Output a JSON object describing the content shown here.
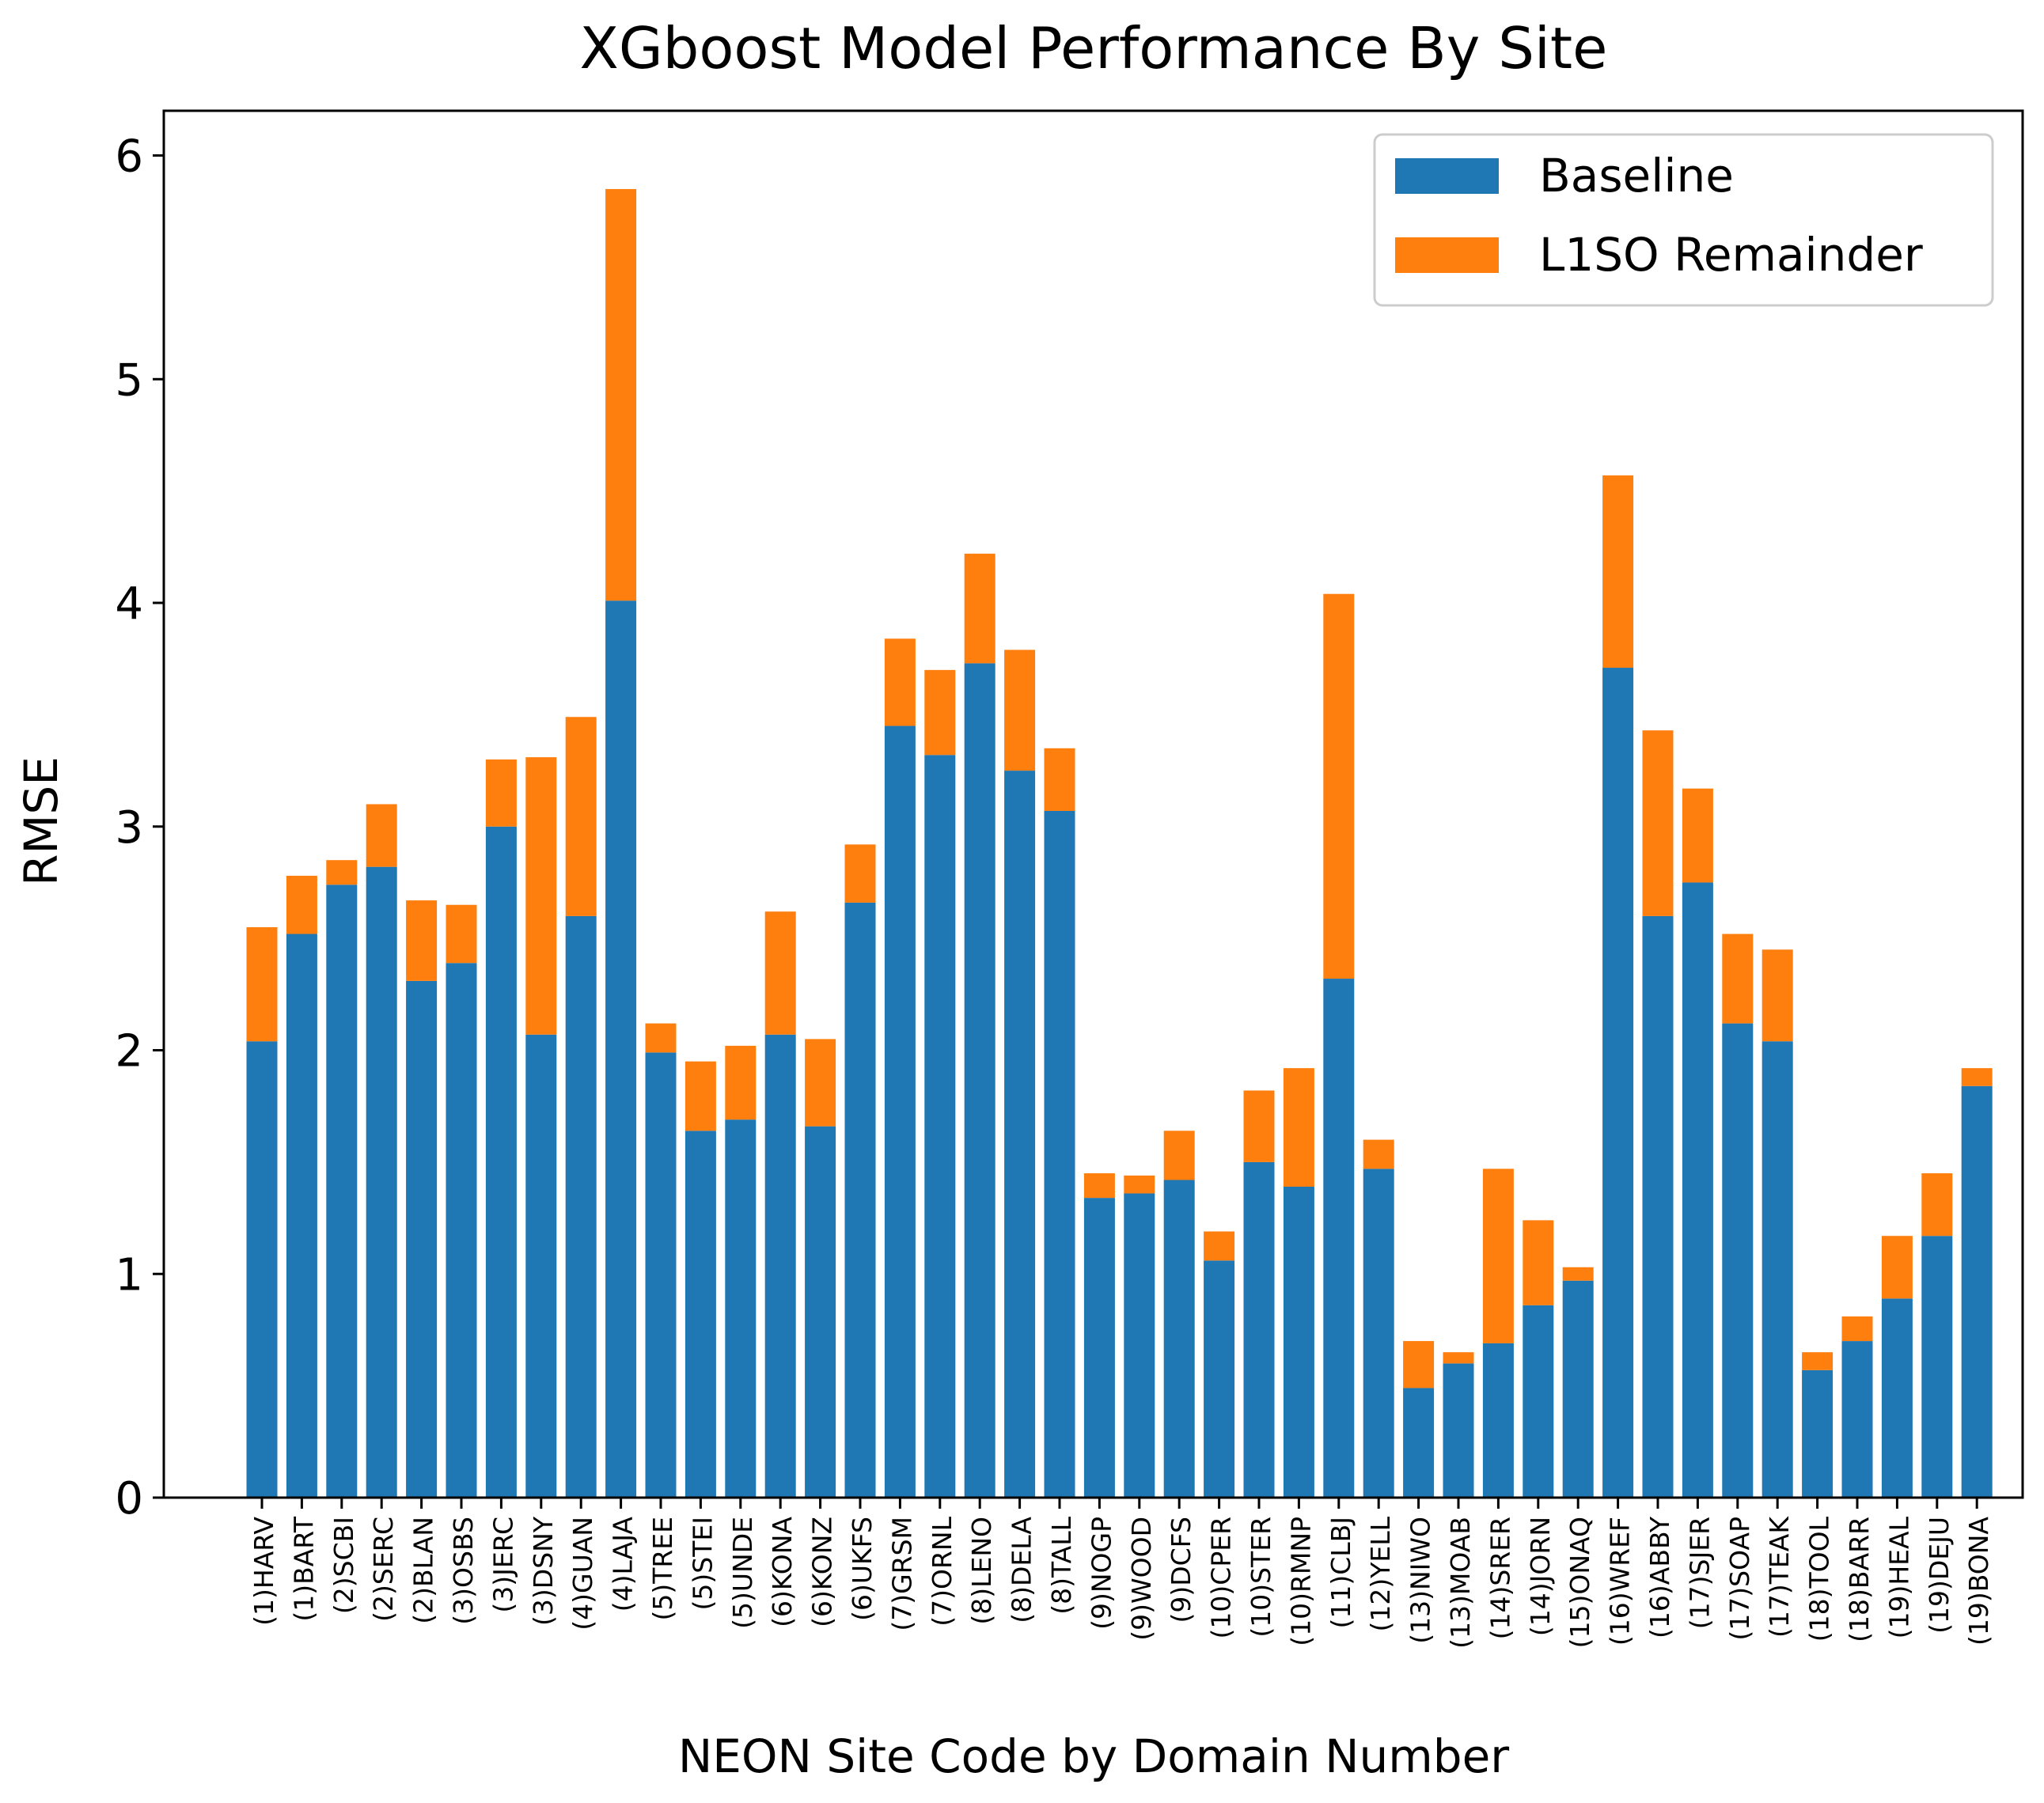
{
  "chart_data": {
    "type": "bar",
    "stacked": true,
    "title": "XGboost Model Performance By Site",
    "xlabel": "NEON Site Code by Domain Number",
    "ylabel": "RMSE",
    "ylim": [
      0,
      6.2
    ],
    "yticks": [
      0,
      1,
      2,
      3,
      4,
      5,
      6
    ],
    "legend_position": "top-right",
    "categories": [
      "(1)HARV",
      "(1)BART",
      "(2)SCBI",
      "(2)SERC",
      "(2)BLAN",
      "(3)OSBS",
      "(3)JERC",
      "(3)DSNY",
      "(4)GUAN",
      "(4)LAJA",
      "(5)TREE",
      "(5)STEI",
      "(5)UNDE",
      "(6)KONA",
      "(6)KONZ",
      "(6)UKFS",
      "(7)GRSM",
      "(7)ORNL",
      "(8)LENO",
      "(8)DELA",
      "(8)TALL",
      "(9)NOGP",
      "(9)WOOD",
      "(9)DCFS",
      "(10)CPER",
      "(10)STER",
      "(10)RMNP",
      "(11)CLBJ",
      "(12)YELL",
      "(13)NIWO",
      "(13)MOAB",
      "(14)SRER",
      "(14)JORN",
      "(15)ONAQ",
      "(16)WREF",
      "(16)ABBY",
      "(17)SJER",
      "(17)SOAP",
      "(17)TEAK",
      "(18)TOOL",
      "(18)BARR",
      "(19)HEAL",
      "(19)DEJU",
      "(19)BONA"
    ],
    "series": [
      {
        "name": "Baseline",
        "color": "#1f77b4",
        "values": [
          2.04,
          2.52,
          2.74,
          2.82,
          2.31,
          2.39,
          3.0,
          2.07,
          2.6,
          4.01,
          1.99,
          1.64,
          1.69,
          2.07,
          1.66,
          2.66,
          3.45,
          3.32,
          3.73,
          3.25,
          3.07,
          1.34,
          1.36,
          1.42,
          1.06,
          1.5,
          1.39,
          2.32,
          1.47,
          0.49,
          0.6,
          0.69,
          0.86,
          0.97,
          3.71,
          2.6,
          2.75,
          2.12,
          2.04,
          0.57,
          0.7,
          0.89,
          1.17,
          1.84
        ]
      },
      {
        "name": "L1SO Remainder",
        "color": "#ff7f0e",
        "values": [
          0.51,
          0.26,
          0.11,
          0.28,
          0.36,
          0.26,
          0.3,
          1.24,
          0.89,
          1.84,
          0.13,
          0.31,
          0.33,
          0.55,
          0.39,
          0.26,
          0.39,
          0.38,
          0.49,
          0.54,
          0.28,
          0.11,
          0.08,
          0.22,
          0.13,
          0.32,
          0.53,
          1.72,
          0.13,
          0.21,
          0.05,
          0.78,
          0.38,
          0.06,
          0.86,
          0.83,
          0.42,
          0.4,
          0.41,
          0.08,
          0.11,
          0.28,
          0.28,
          0.08
        ]
      }
    ]
  }
}
